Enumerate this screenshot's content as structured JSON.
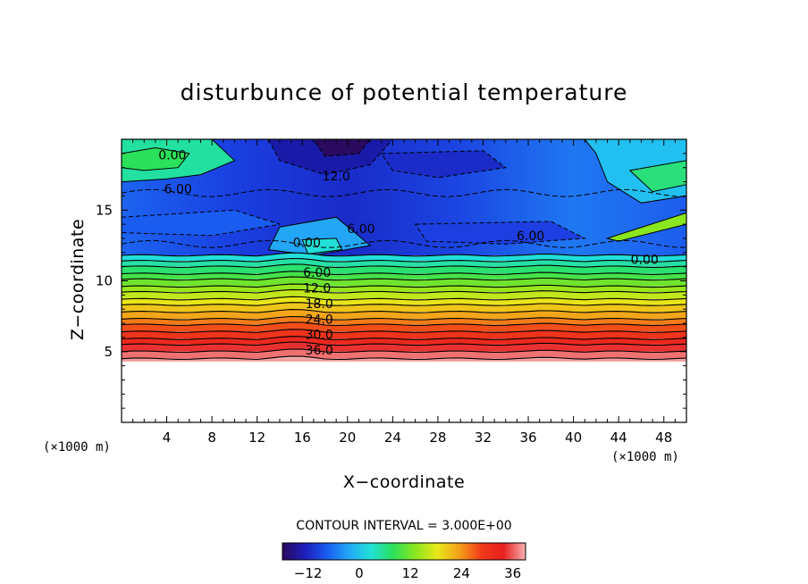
{
  "chart_data": {
    "type": "heatmap",
    "title": "disturbunce of potential temperature",
    "xlabel": "X−coordinate",
    "ylabel": "Z−coordinate",
    "x_unit": "(×1000 m)",
    "y_unit": "(×1000 m)",
    "xlim": [
      0,
      50
    ],
    "ylim": [
      0,
      20
    ],
    "x_ticks": [
      4,
      8,
      12,
      16,
      20,
      24,
      28,
      32,
      36,
      40,
      44,
      48
    ],
    "y_ticks": [
      5,
      10,
      15
    ],
    "grid": false,
    "contour_interval_label": "CONTOUR INTERVAL = 3.000E+00",
    "colorbar": {
      "range": [
        -18,
        39
      ],
      "ticks": [
        -12,
        0,
        12,
        24,
        36
      ],
      "colors": [
        "#2a0a5e",
        "#1d1db8",
        "#1a5bf0",
        "#22a6f5",
        "#22e0d8",
        "#2be05a",
        "#8ae61e",
        "#e8e81a",
        "#f5a01a",
        "#f03a1a",
        "#e82020",
        "#f6b0b0"
      ]
    },
    "contour_labels": [
      {
        "text": "0.00",
        "x": 4.5,
        "z": 18.9
      },
      {
        "text": "6.00",
        "x": 5.0,
        "z": 16.5
      },
      {
        "text": "12.0",
        "x": 19.0,
        "z": 17.4
      },
      {
        "text": "6.00",
        "x": 21.2,
        "z": 13.7
      },
      {
        "text": "0.00",
        "x": 16.4,
        "z": 12.7
      },
      {
        "text": "6.00",
        "x": 36.2,
        "z": 13.2
      },
      {
        "text": "0.00",
        "x": 46.3,
        "z": 11.5
      },
      {
        "text": "6.00",
        "x": 17.3,
        "z": 10.6
      },
      {
        "text": "12.0",
        "x": 17.3,
        "z": 9.5
      },
      {
        "text": "18.0",
        "x": 17.5,
        "z": 8.4
      },
      {
        "text": "24.0",
        "x": 17.5,
        "z": 7.3
      },
      {
        "text": "30.0",
        "x": 17.5,
        "z": 6.2
      },
      {
        "text": "36.0",
        "x": 17.5,
        "z": 5.1
      }
    ],
    "level_boundaries_z": [
      11.8,
      11.4,
      11.0,
      10.5,
      10.1,
      9.6,
      9.2,
      8.7,
      8.3,
      7.8,
      7.3,
      6.9,
      6.4,
      5.9,
      5.5,
      5.0,
      4.5
    ],
    "ground_z": 4.3
  }
}
